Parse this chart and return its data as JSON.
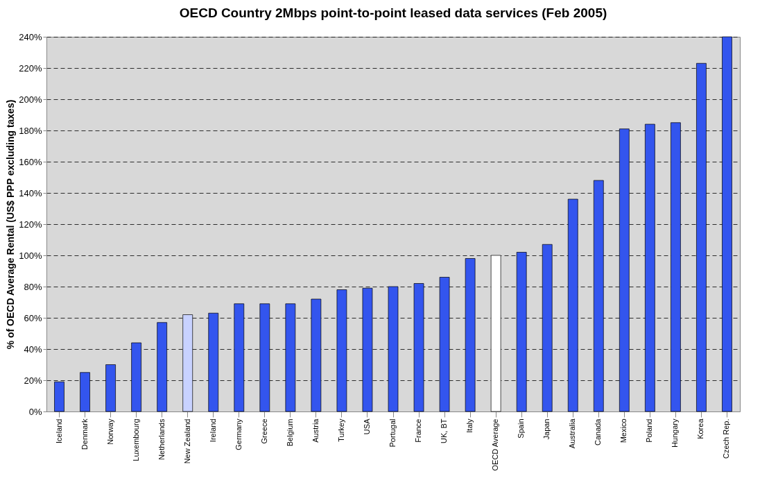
{
  "chart_data": {
    "type": "bar",
    "title": "OECD Country 2Mbps point-to-point leased data services (Feb 2005)",
    "ylabel": "% of OECD Average Rental (US$ PPP excluding taxes)",
    "categories": [
      "Iceland",
      "Denmark",
      "Norway",
      "Luxembourg",
      "Netherlands",
      "New Zealand",
      "Ireland",
      "Germany",
      "Greece",
      "Belgium",
      "Austria",
      "Turkey",
      "USA",
      "Portugal",
      "France",
      "UK, BT",
      "Italy",
      "OECD Average",
      "Spain",
      "Japan",
      "Australia",
      "Canada",
      "Mexico",
      "Poland",
      "Hungary",
      "Korea",
      "Czech Rep."
    ],
    "values": [
      19,
      25,
      30,
      44,
      57,
      62,
      63,
      69,
      69,
      69,
      72,
      78,
      79,
      80,
      82,
      86,
      98,
      100,
      102,
      107,
      136,
      148,
      181,
      184,
      185,
      223,
      240
    ],
    "colors": [
      "#3355ee",
      "#3355ee",
      "#3355ee",
      "#3355ee",
      "#3355ee",
      "#c8d2ff",
      "#3355ee",
      "#3355ee",
      "#3355ee",
      "#3355ee",
      "#3355ee",
      "#3355ee",
      "#3355ee",
      "#3355ee",
      "#3355ee",
      "#3355ee",
      "#3355ee",
      "#ffffff",
      "#3355ee",
      "#3355ee",
      "#3355ee",
      "#3355ee",
      "#3355ee",
      "#3355ee",
      "#3355ee",
      "#3355ee",
      "#3355ee"
    ],
    "ylim": [
      0,
      240
    ],
    "yticks": [
      {
        "value": 0,
        "label": "0%"
      },
      {
        "value": 20,
        "label": "20%"
      },
      {
        "value": 40,
        "label": "40%"
      },
      {
        "value": 60,
        "label": "60%"
      },
      {
        "value": 80,
        "label": "80%"
      },
      {
        "value": 100,
        "label": "100%"
      },
      {
        "value": 120,
        "label": "120%"
      },
      {
        "value": 140,
        "label": "140%"
      },
      {
        "value": 160,
        "label": "160%"
      },
      {
        "value": 180,
        "label": "180%"
      },
      {
        "value": 200,
        "label": "200%"
      },
      {
        "value": 220,
        "label": "220%"
      },
      {
        "value": 240,
        "label": "240%"
      }
    ],
    "grid": "y",
    "line_style": "dashed"
  }
}
